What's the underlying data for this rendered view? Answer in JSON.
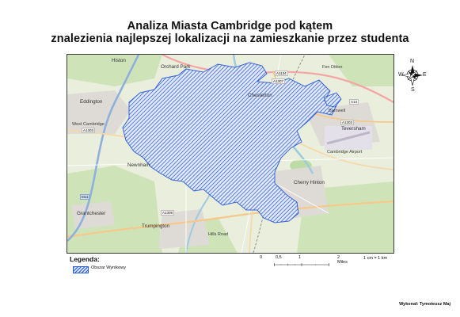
{
  "title": {
    "line1": "Analiza Miasta Cambridge pod kątem",
    "line2": "znalezienia najlepszej lokalizacji na zamieszkanie przez studenta"
  },
  "north_arrow": {
    "n": "N",
    "s": "S",
    "e": "E",
    "w": "W"
  },
  "map": {
    "places": {
      "orchard_park": "Orchard Park",
      "histon": "Histon",
      "chesterton": "Chesterton",
      "eddington": "Eddington",
      "newnham": "Newnham",
      "cherry_hinton": "Cherry Hinton",
      "grantchester": "Grantchester",
      "trumpington": "Trumpington",
      "fen_ditton": "Fen Ditton",
      "teversham": "Teversham",
      "barnwell": "Barnwell",
      "west_cambridge": "West Cambridge",
      "hills_road": "Hills Road",
      "cambridge_airport": "Cambridge Airport"
    },
    "roads": {
      "a1307_n": "A1307",
      "a1134": "A1134",
      "a1303_w": "A1303",
      "a1303_e": "A1303",
      "a14": "A14",
      "a1309": "A1309",
      "m11": "M11"
    },
    "overlay_color": "#2a5bd7",
    "base_colors": {
      "land": "#eaf0df",
      "urban": "#dcd9d4",
      "water": "#aad3df",
      "green": "#c6dfb0"
    }
  },
  "legend": {
    "title": "Legenda:",
    "items": [
      {
        "label": "Obszar Wynikowy",
        "color": "#2a5bd7"
      }
    ]
  },
  "scale": {
    "ticks": [
      "0",
      "0,5",
      "1",
      "2 Miles"
    ],
    "ratio": "1 cm = 1 km"
  },
  "author": "Wykonał: Tymoteusz Maj"
}
